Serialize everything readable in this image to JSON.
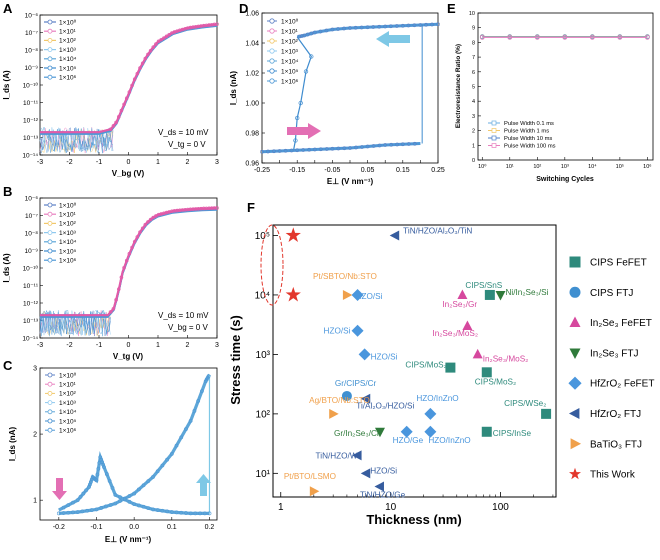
{
  "panels": {
    "A": {
      "letter": "A",
      "xlabel": "V_bg (V)",
      "ylabel": "I_ds (A)",
      "xticks": [
        "-3",
        "-2",
        "-1",
        "0",
        "1",
        "2",
        "3"
      ],
      "yticks": [
        "10⁻¹⁴",
        "10⁻¹³",
        "10⁻¹²",
        "10⁻¹¹",
        "10⁻¹⁰",
        "10⁻⁹",
        "10⁻⁸",
        "10⁻⁷",
        "10⁻⁶"
      ],
      "legend": [
        "1×10⁰",
        "1×10¹",
        "1×10²",
        "1×10³",
        "1×10⁴",
        "1×10⁵",
        "1×10⁶"
      ],
      "annot1": "V_ds = 10 mV",
      "annot2": "V_tg = 0 V"
    },
    "B": {
      "letter": "B",
      "xlabel": "V_tg (V)",
      "ylabel": "I_ds (A)",
      "xticks": [
        "-3",
        "-2",
        "-1",
        "0",
        "1",
        "2",
        "3"
      ],
      "yticks": [
        "10⁻¹⁴",
        "10⁻¹³",
        "10⁻¹²",
        "10⁻¹¹",
        "10⁻¹⁰",
        "10⁻⁹",
        "10⁻⁸",
        "10⁻⁷",
        "10⁻⁶"
      ],
      "legend": [
        "1×10⁰",
        "1×10¹",
        "1×10²",
        "1×10³",
        "1×10⁴",
        "1×10⁵",
        "1×10⁶"
      ],
      "annot1": "V_ds = 10 mV",
      "annot2": "V_bg = 0 V"
    },
    "C": {
      "letter": "C",
      "xlabel": "E⊥ (V nm⁻¹)",
      "ylabel": "I_ds (nA)",
      "xticks": [
        "-0.2",
        "-0.1",
        "0.0",
        "0.1",
        "0.2"
      ],
      "yticks": [
        "1",
        "2",
        "3"
      ],
      "legend": [
        "1×10⁰",
        "1×10¹",
        "1×10²",
        "1×10³",
        "1×10⁴",
        "1×10⁵",
        "1×10⁶"
      ]
    },
    "D": {
      "letter": "D",
      "xlabel": "E⊥ (V nm⁻¹)",
      "ylabel": "I_ds (nA)",
      "xticks": [
        "-0.25",
        "-0.20",
        "-0.15",
        "-0.10",
        "-0.05",
        "0.00",
        "0.05",
        "0.10",
        "0.15",
        "0.20",
        "0.25"
      ],
      "yticks": [
        "0.96",
        "0.98",
        "1.00",
        "1.02",
        "1.04",
        "1.06"
      ],
      "legend": [
        "1×10⁰",
        "1×10¹",
        "1×10²",
        "1×10³",
        "1×10⁴",
        "1×10⁵",
        "1×10⁶"
      ]
    },
    "E": {
      "letter": "E",
      "xlabel": "Switching Cycles",
      "ylabel": "Electroresistance Ratio (%)",
      "xticks": [
        "10⁰",
        "10¹",
        "10²",
        "10³",
        "10⁴",
        "10⁵",
        "10⁶"
      ],
      "yticks": [
        "0",
        "1",
        "2",
        "3",
        "4",
        "5",
        "6",
        "7",
        "8",
        "9",
        "10"
      ],
      "legend": [
        "Pulse Width   0.1 ms",
        "Pulse Width      1 ms",
        "Pulse Width     10 ms",
        "Pulse Width   100 ms"
      ]
    },
    "F": {
      "letter": "F",
      "xlabel": "Thickness (nm)",
      "ylabel": "Stress time (s)",
      "xticks": [
        "1",
        "10",
        "100"
      ],
      "yticks": [
        "10¹",
        "10²",
        "10³",
        "10⁴",
        "10⁵"
      ],
      "legend": [
        "CIPS FeFET",
        "CIPS FTJ",
        "In₂Se₃ FeFET",
        "In₂Se₃ FTJ",
        "HfZrO₂ FeFET",
        "HfZrO₂ FTJ",
        "BaTiO₃ FTJ",
        "This Work"
      ]
    }
  },
  "colors": {
    "series": [
      "#5b7fc4",
      "#e87fbf",
      "#f2c86b",
      "#8fc9ef",
      "#5da6d8",
      "#3f8ccf",
      "#4e98d6"
    ],
    "topCurve": "#e25aa8",
    "cipsFeFET": "#2e8a7c",
    "cipsFTJ": "#3f8fd0",
    "in2se3FeFET": "#d6489e",
    "in2se3FTJ": "#2f7a3a",
    "hfzrFeFET": "#4a96dd",
    "hfzrFTJ": "#365c9e",
    "batio3": "#f0a04b",
    "thisWork": "#e2372c",
    "arrowPink": "#e36fb4",
    "arrowBlue": "#7ec8e6"
  },
  "chart_data": [
    {
      "id": "A",
      "type": "line",
      "x_scale": "linear",
      "y_scale": "log",
      "title": "",
      "xlabel": "V_bg (V)",
      "ylabel": "I_ds (A)",
      "xlim": [
        -3,
        3
      ],
      "ylim": [
        1e-14,
        1e-06
      ],
      "series_names": [
        "1×10⁰",
        "1×10¹",
        "1×10²",
        "1×10³",
        "1×10⁴",
        "1×10⁵",
        "1×10⁶"
      ],
      "curve": {
        "x": [
          -3.0,
          -1.0,
          -0.6,
          -0.4,
          -0.2,
          0.0,
          0.2,
          0.4,
          0.6,
          0.8,
          1.0,
          1.5,
          2.0,
          2.5,
          3.0
        ],
        "y": [
          2e-13,
          2e-13,
          3e-13,
          8e-13,
          5e-12,
          3e-11,
          2e-10,
          1e-09,
          4e-09,
          1.2e-08,
          3e-08,
          1e-07,
          1.8e-07,
          2.4e-07,
          3e-07
        ]
      }
    },
    {
      "id": "B",
      "type": "line",
      "x_scale": "linear",
      "y_scale": "log",
      "title": "",
      "xlabel": "V_tg (V)",
      "ylabel": "I_ds (A)",
      "xlim": [
        -3,
        3
      ],
      "ylim": [
        1e-14,
        1e-06
      ],
      "series_names": [
        "1×10⁰",
        "1×10¹",
        "1×10²",
        "1×10³",
        "1×10⁴",
        "1×10⁵",
        "1×10⁶"
      ],
      "curve": {
        "x": [
          -3.0,
          -0.7,
          -0.5,
          -0.4,
          -0.3,
          -0.2,
          0.0,
          0.2,
          0.4,
          0.6,
          0.8,
          1.0,
          1.5,
          2.0,
          2.5,
          3.0
        ],
        "y": [
          2e-13,
          2e-13,
          5e-13,
          2e-12,
          1e-11,
          6e-11,
          5e-10,
          3e-09,
          1.2e-08,
          3.5e-08,
          7e-08,
          1.1e-07,
          1.8e-07,
          2.2e-07,
          2.5e-07,
          2.7e-07
        ]
      }
    },
    {
      "id": "C",
      "type": "scatter",
      "title": "",
      "xlabel": "E⊥ (V nm⁻¹)",
      "ylabel": "I_ds (nA)",
      "xlim": [
        -0.25,
        0.22
      ],
      "ylim": [
        0.7,
        3.0
      ],
      "series_names": [
        "1×10⁰",
        "1×10¹",
        "1×10²",
        "1×10³",
        "1×10⁴",
        "1×10⁵",
        "1×10⁶"
      ],
      "branch_up": {
        "x": [
          -0.2,
          -0.15,
          -0.1,
          -0.05,
          0.0,
          0.05,
          0.1,
          0.15,
          0.19,
          0.2
        ],
        "y": [
          0.8,
          0.82,
          0.86,
          0.95,
          1.1,
          1.35,
          1.7,
          2.2,
          2.8,
          2.9
        ]
      },
      "branch_down": {
        "x": [
          0.2,
          0.15,
          0.1,
          0.05,
          0.0,
          -0.05,
          -0.08,
          -0.09,
          -0.1,
          -0.11,
          -0.12,
          -0.15,
          -0.2
        ],
        "y": [
          0.8,
          0.8,
          0.82,
          0.86,
          0.94,
          1.08,
          1.5,
          1.65,
          1.3,
          1.35,
          1.2,
          1.0,
          0.85
        ]
      }
    },
    {
      "id": "D",
      "type": "scatter",
      "title": "",
      "xlabel": "E⊥ (V nm⁻¹)",
      "ylabel": "I_ds (nA)",
      "xlim": [
        -0.25,
        0.25
      ],
      "ylim": [
        0.96,
        1.06
      ],
      "series_names": [
        "1×10⁰",
        "1×10¹",
        "1×10²",
        "1×10³",
        "1×10⁴",
        "1×10⁵",
        "1×10⁶"
      ],
      "lower_branch": {
        "x": [
          -0.25,
          -0.2,
          -0.15,
          -0.1,
          -0.05,
          0.0,
          0.05,
          0.1,
          0.15,
          0.2
        ],
        "y": [
          0.9675,
          0.968,
          0.9685,
          0.969,
          0.9695,
          0.97,
          0.971,
          0.972,
          0.9725,
          0.973
        ]
      },
      "upper_branch": {
        "x": [
          0.25,
          0.2,
          0.15,
          0.1,
          0.05,
          0.0,
          -0.05,
          -0.1,
          -0.13,
          -0.15
        ],
        "y": [
          1.0525,
          1.052,
          1.0515,
          1.051,
          1.0505,
          1.05,
          1.049,
          1.047,
          1.045,
          1.044
        ]
      },
      "switch_up_x": 0.205,
      "switch_down_steps": [
        {
          "x": -0.11,
          "y": 1.031
        },
        {
          "x": -0.125,
          "y": 1.021
        },
        {
          "x": -0.14,
          "y": 1.0
        },
        {
          "x": -0.15,
          "y": 0.99
        },
        {
          "x": -0.155,
          "y": 0.975
        }
      ]
    },
    {
      "id": "E",
      "type": "line",
      "x_scale": "log",
      "title": "",
      "xlabel": "Switching Cycles",
      "ylabel": "Electroresistance Ratio (%)",
      "xlim": [
        1,
        1000000
      ],
      "ylim": [
        0,
        10
      ],
      "x": [
        1,
        10,
        100,
        1000,
        10000,
        100000,
        1000000
      ],
      "series": [
        {
          "name": "Pulse Width 0.1 ms",
          "values": [
            8.4,
            8.4,
            8.4,
            8.4,
            8.4,
            8.4,
            8.4
          ]
        },
        {
          "name": "Pulse Width 1 ms",
          "values": [
            8.4,
            8.4,
            8.4,
            8.4,
            8.4,
            8.4,
            8.4
          ]
        },
        {
          "name": "Pulse Width 10 ms",
          "values": [
            8.4,
            8.4,
            8.4,
            8.4,
            8.4,
            8.4,
            8.4
          ]
        },
        {
          "name": "Pulse Width 100 ms",
          "values": [
            8.4,
            8.4,
            8.4,
            8.4,
            8.4,
            8.4,
            8.4
          ]
        }
      ]
    },
    {
      "id": "F",
      "type": "scatter",
      "x_scale": "log",
      "y_scale": "log",
      "title": "",
      "xlabel": "Thickness (nm)",
      "ylabel": "Stress time (s)",
      "xlim": [
        0.85,
        320
      ],
      "ylim": [
        4,
        150000
      ],
      "points": [
        {
          "category": "thisWork",
          "x": 1.3,
          "y": 100000,
          "label": ""
        },
        {
          "category": "thisWork",
          "x": 1.3,
          "y": 10000,
          "label": ""
        },
        {
          "category": "hfzrFTJ",
          "x": 11,
          "y": 100000,
          "label": "TiN/HZO/Al₂O₃/TiN"
        },
        {
          "category": "batio3",
          "x": 4,
          "y": 10000,
          "label": "Pt/SBTO/Nb:STO"
        },
        {
          "category": "hfzrFeFET",
          "x": 5,
          "y": 10000,
          "label": "HZO/Si"
        },
        {
          "category": "in2se3FeFET",
          "x": 45,
          "y": 10000,
          "label": "In₂Se₃/Gr"
        },
        {
          "category": "cipsFeFET",
          "x": 80,
          "y": 10000,
          "label": "CIPS/SnS"
        },
        {
          "category": "in2se3FTJ",
          "x": 100,
          "y": 10000,
          "label": "Ni/In₂Se₃/Si"
        },
        {
          "category": "in2se3FeFET",
          "x": 50,
          "y": 3000,
          "label": "In₂Se₃/MoS₂"
        },
        {
          "category": "hfzrFeFET",
          "x": 5,
          "y": 2500,
          "label": "HZO/Si"
        },
        {
          "category": "hfzrFeFET",
          "x": 5.8,
          "y": 1000,
          "label": "HZO/Si"
        },
        {
          "category": "in2se3FeFET",
          "x": 62,
          "y": 1000,
          "label": "In₂Se₃/MoS₂"
        },
        {
          "category": "cipsFeFET",
          "x": 35,
          "y": 600,
          "label": "CIPS/MoS₂"
        },
        {
          "category": "cipsFeFET",
          "x": 75,
          "y": 500,
          "label": "CIPS/MoS₂"
        },
        {
          "category": "cipsFTJ",
          "x": 4,
          "y": 200,
          "label": "Gr/CIPS/Cr"
        },
        {
          "category": "hfzrFTJ",
          "x": 6,
          "y": 180,
          "label": "Ti/Al₂O₃/HZO/Si"
        },
        {
          "category": "batio3",
          "x": 3,
          "y": 100,
          "label": "Ag/BTO/Nb:STO"
        },
        {
          "category": "hfzrFeFET",
          "x": 23,
          "y": 100,
          "label": "HZO/InZnO"
        },
        {
          "category": "cipsFeFET",
          "x": 260,
          "y": 100,
          "label": "CIPS/WSe₂"
        },
        {
          "category": "in2se3FTJ",
          "x": 8,
          "y": 50,
          "label": "Gr/In₂Se₃/Cr"
        },
        {
          "category": "hfzrFeFET",
          "x": 14,
          "y": 50,
          "label": "HZO/Ge"
        },
        {
          "category": "hfzrFeFET",
          "x": 23,
          "y": 50,
          "label": "HZO/InZnO"
        },
        {
          "category": "cipsFeFET",
          "x": 75,
          "y": 50,
          "label": "CIPS/InSe"
        },
        {
          "category": "hfzrFTJ",
          "x": 5,
          "y": 20,
          "label": "TiN/HZO/W"
        },
        {
          "category": "hfzrFTJ",
          "x": 6,
          "y": 10,
          "label": "HZO/Si"
        },
        {
          "category": "batio3",
          "x": 2,
          "y": 5,
          "label": "Pt/BTO/LSMO"
        },
        {
          "category": "hfzrFTJ",
          "x": 8,
          "y": 6,
          "label": "TiN/HZO/Ge"
        }
      ]
    }
  ]
}
